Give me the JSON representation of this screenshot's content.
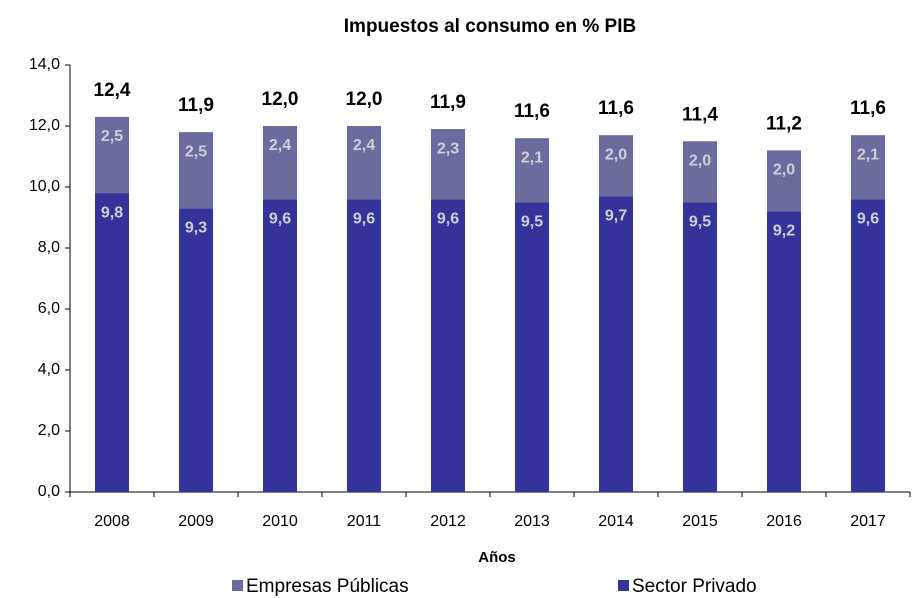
{
  "chart_data": {
    "type": "stacked_bar",
    "title": "Impuestos al consumo en % PIB",
    "x_label": "Años",
    "categories": [
      "2008",
      "2009",
      "2010",
      "2011",
      "2012",
      "2013",
      "2014",
      "2015",
      "2016",
      "2017"
    ],
    "series": [
      {
        "name": "Sector Privado",
        "color": "#333399",
        "values": [
          9.8,
          9.3,
          9.6,
          9.6,
          9.6,
          9.5,
          9.7,
          9.5,
          9.2,
          9.6
        ],
        "value_labels": [
          "9,8",
          "9,3",
          "9,6",
          "9,6",
          "9,6",
          "9,5",
          "9,7",
          "9,5",
          "9,2",
          "9,6"
        ]
      },
      {
        "name": "Empresas Públicas",
        "color": "#6b6b9e",
        "values": [
          2.5,
          2.5,
          2.4,
          2.4,
          2.3,
          2.1,
          2.0,
          2.0,
          2.0,
          2.1
        ],
        "value_labels": [
          "2,5",
          "2,5",
          "2,4",
          "2,4",
          "2,3",
          "2,1",
          "2,0",
          "2,0",
          "2,0",
          "2,1"
        ]
      }
    ],
    "total_labels": [
      "12,4",
      "11,9",
      "12,0",
      "12,0",
      "11,9",
      "11,6",
      "11,6",
      "11,4",
      "11,2",
      "11,6"
    ],
    "ylim": [
      0,
      14
    ],
    "yticks": [
      {
        "value": 0,
        "label": "0,0"
      },
      {
        "value": 2,
        "label": "2,0"
      },
      {
        "value": 4,
        "label": "4,0"
      },
      {
        "value": 6,
        "label": "6,0"
      },
      {
        "value": 8,
        "label": "8,0"
      },
      {
        "value": 10,
        "label": "10,0"
      },
      {
        "value": 12,
        "label": "12,0"
      },
      {
        "value": 14,
        "label": "14,0"
      }
    ],
    "grid": false
  }
}
